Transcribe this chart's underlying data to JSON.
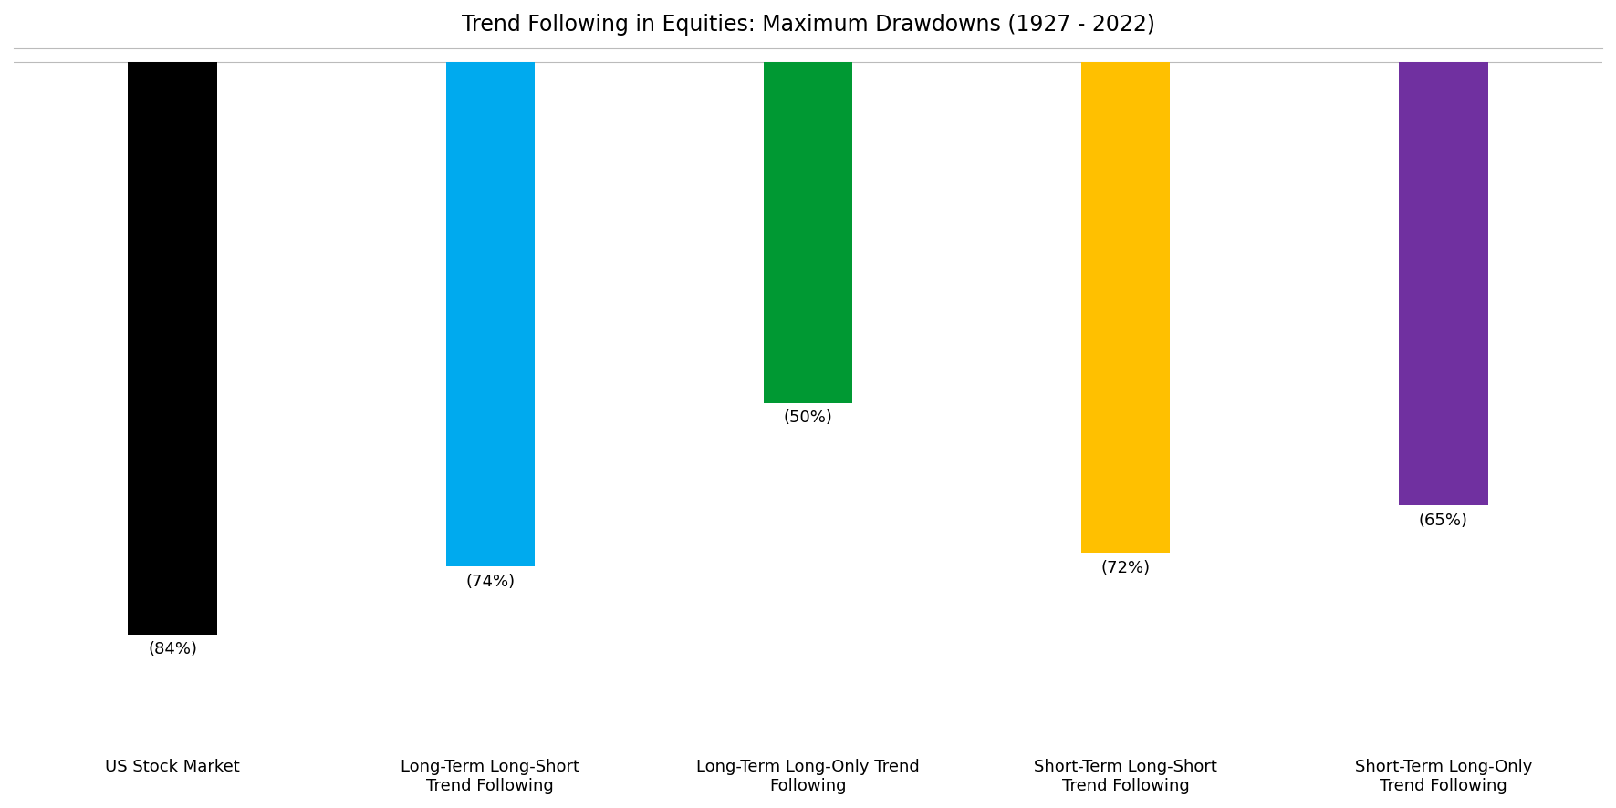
{
  "title": "Trend Following in Equities: Maximum Drawdowns (1927 - 2022)",
  "categories": [
    "US Stock Market",
    "Long-Term Long-Short\nTrend Following",
    "Long-Term Long-Only Trend\nFollowing",
    "Short-Term Long-Short\nTrend Following",
    "Short-Term Long-Only\nTrend Following"
  ],
  "values": [
    -84,
    -74,
    -50,
    -72,
    -65
  ],
  "labels": [
    "(84%)",
    "(74%)",
    "(50%)",
    "(72%)",
    "(65%)"
  ],
  "colors": [
    "#000000",
    "#00AAEE",
    "#009933",
    "#FFC000",
    "#7030A0"
  ],
  "background_color": "#ffffff",
  "title_fontsize": 17,
  "label_fontsize": 13,
  "tick_fontsize": 13,
  "bar_width": 0.28
}
